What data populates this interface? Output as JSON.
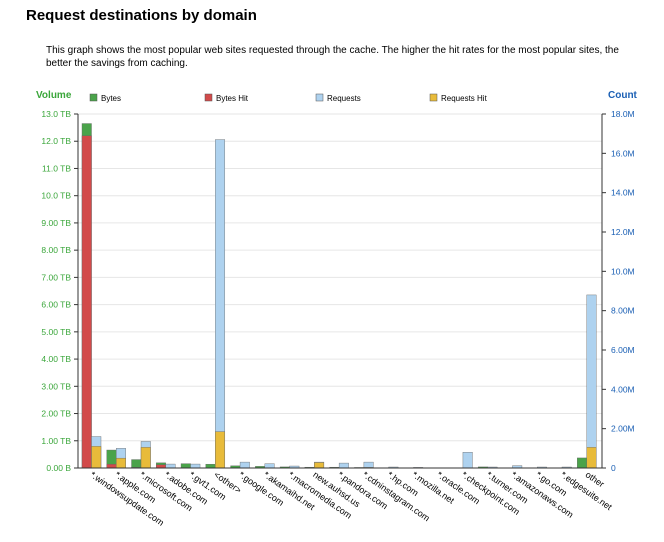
{
  "page": {
    "title": "Request destinations by domain",
    "description": "This graph shows the most popular web sites requested through the cache. The higher the hit rates for the most popular sites, the better the savings from caching."
  },
  "colors": {
    "bytes": "#4aa34a",
    "bytes_hit": "#d24a4a",
    "requests": "#aed2ef",
    "requests_hit": "#e8bb3a",
    "left_axis": "#3aa63a",
    "right_axis": "#1a5fb4",
    "grid": "#e6e6e6"
  },
  "chart_data": {
    "type": "bar",
    "y_left": {
      "label": "Volume",
      "unit": "TB",
      "range": [
        0,
        13
      ],
      "ticks": [
        "0.00 B",
        "1.00 TB",
        "2.00 TB",
        "3.00 TB",
        "4.00 TB",
        "5.00 TB",
        "6.00 TB",
        "7.00 TB",
        "8.00 TB",
        "9.00 TB",
        "10.0 TB",
        "11.0 TB",
        "12.0 TB",
        "13.0 TB"
      ]
    },
    "y_right": {
      "label": "Count",
      "unit": "M",
      "range": [
        0,
        18
      ],
      "ticks": [
        "0",
        "2.00M",
        "4.00M",
        "6.00M",
        "8.00M",
        "10.0M",
        "12.0M",
        "14.0M",
        "16.0M",
        "18.0M"
      ]
    },
    "legend": [
      "Bytes",
      "Bytes Hit",
      "Requests",
      "Requests Hit"
    ],
    "grid": true,
    "categories": [
      "*.windowsupdate.com",
      "*.apple.com",
      "*.microsoft.com",
      "*.adobe.com",
      "*.gvt1.com",
      "<other>",
      "*.google.com",
      "*.akamaihd.net",
      "*.macromedia.com",
      "new.auhsd.us",
      "*.pandora.com",
      "*.cdninstagram.com",
      "*.hp.com",
      "*.mozilla.net",
      "*.oracle.com",
      "*.checkpoint.com",
      "*.turner.com",
      "*.amazonaws.com",
      "*.go.com",
      "*.edgesuite.net",
      "other"
    ],
    "series": [
      {
        "name": "Bytes",
        "axis": "left",
        "values": [
          12.65,
          0.66,
          0.31,
          0.19,
          0.16,
          0.14,
          0.08,
          0.06,
          0.04,
          0.03,
          0.03,
          0.02,
          0.01,
          0.01,
          0.01,
          0.01,
          0.04,
          0.01,
          0.01,
          0.01,
          0.37
        ]
      },
      {
        "name": "Bytes Hit",
        "axis": "left",
        "values": [
          12.2,
          0.14,
          0.02,
          0.12,
          0.01,
          0.01,
          0.01,
          0.0,
          0.01,
          0.0,
          0.0,
          0.0,
          0.0,
          0.0,
          0.0,
          0.0,
          0.0,
          0.0,
          0.0,
          0.0,
          0.01
        ]
      },
      {
        "name": "Requests",
        "axis": "right",
        "values": [
          1.6,
          1.0,
          1.35,
          0.2,
          0.2,
          16.7,
          0.3,
          0.22,
          0.1,
          0.3,
          0.25,
          0.3,
          0.05,
          0.03,
          0.02,
          0.8,
          0.05,
          0.12,
          0.05,
          0.05,
          8.8
        ]
      },
      {
        "name": "Requests Hit",
        "axis": "right",
        "values": [
          1.1,
          0.5,
          1.05,
          0.02,
          0.01,
          1.85,
          0.02,
          0.01,
          0.02,
          0.28,
          0.02,
          0.03,
          0.01,
          0.0,
          0.0,
          0.01,
          0.01,
          0.01,
          0.0,
          0.0,
          1.05
        ]
      }
    ]
  }
}
